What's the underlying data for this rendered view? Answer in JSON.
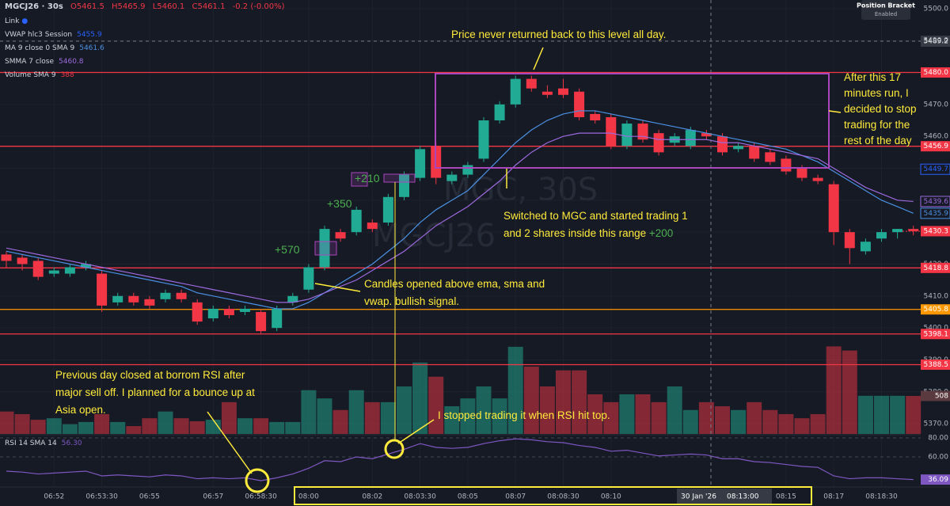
{
  "header": {
    "symbol": "MGCJ26 · 30s",
    "ohlc": [
      "O5461.5",
      "H5465.9",
      "L5460.1",
      "C5461.1"
    ],
    "change": "-0.2 (-0.00%)",
    "link": "Link"
  },
  "legend": [
    {
      "name": "VWAP hlc3 Session",
      "value": 5455.9,
      "color": "#2962ff"
    },
    {
      "name": "MA 9 close 0 SMA 9",
      "value": 5461.6,
      "color": "#4a90e2"
    },
    {
      "name": "SMMA 7 close",
      "value": 5460.8,
      "color": "#9c6ade"
    },
    {
      "name": "Volume SMA 9",
      "value": 388,
      "color": "#f23645"
    }
  ],
  "position_bracket": {
    "title": "Position Bracket",
    "state": "Enabled"
  },
  "crosshair": {
    "date": "30 Jan '26",
    "time": "08:13:00",
    "price": 5489.2
  },
  "watermark": [
    "MGC, 30S",
    "MGCJ26"
  ],
  "annotations": {
    "never_returned": "Price never returned back to this level all day.",
    "stop": "After this 17 minutes run, I decided to stop trading for the rest of the day",
    "range": "Switched to MGC and started trading 1 and 2 shares inside this range",
    "range_pnl": "+200",
    "pnl": [
      "+570",
      "+350",
      "+210"
    ],
    "candles": "Candles opened above ema, sma and vwap. bullish signal.",
    "previous": "Previous day closed at borrom RSI after major sell off. I planned for a bounce up at Asia open.",
    "rsi_top": "I stopped trading it when RSI hit top."
  },
  "chart_data": {
    "type": "candlestick",
    "up_color": "#22ab94",
    "down_color": "#f23645",
    "grid": true,
    "categories": [
      null,
      null,
      null,
      "06:52",
      null,
      null,
      "06:53:30",
      null,
      null,
      "06:55",
      null,
      null,
      null,
      "06:57",
      null,
      null,
      "06:58:30",
      null,
      null,
      "08:00",
      null,
      null,
      null,
      "08:02",
      null,
      null,
      "08:03:30",
      null,
      null,
      "08:05",
      null,
      null,
      "08:07",
      null,
      null,
      "08:08:30",
      null,
      null,
      "08:10",
      null,
      null,
      null,
      null,
      null,
      null,
      null,
      null,
      null,
      null,
      "08:15",
      null,
      null,
      "08:17",
      null,
      null,
      "08:18:30",
      null,
      null
    ],
    "open": [
      5423,
      5422,
      5421,
      5417,
      5417,
      5419,
      5417,
      5408,
      5410,
      5409,
      5409,
      5411,
      5408,
      5403,
      5406,
      5405,
      5405,
      5400,
      5408,
      5412,
      5419,
      5430,
      5430,
      5433,
      5433,
      5441,
      5447,
      5457,
      5446,
      5448,
      5453,
      5465,
      5470,
      5478,
      5474,
      5475,
      5474,
      5467,
      5466,
      5457,
      5464,
      5461,
      5458,
      5457,
      5461,
      5460,
      5456,
      5457,
      5455,
      5453,
      5450,
      5447,
      5445,
      5430,
      5424,
      5428,
      5430,
      5431
    ],
    "high": [
      5424,
      5423,
      5422,
      5419,
      5420,
      5421,
      5418,
      5411,
      5411,
      5410,
      5412,
      5412,
      5409,
      5407,
      5407,
      5407,
      5406,
      5407,
      5411,
      5420,
      5432,
      5431,
      5438,
      5434,
      5442,
      5449,
      5457,
      5458,
      5449,
      5452,
      5466,
      5471,
      5479,
      5479,
      5476,
      5478,
      5475,
      5468,
      5467,
      5465,
      5465,
      5462,
      5461,
      5463,
      5462,
      5461,
      5458,
      5458,
      5456,
      5454,
      5451,
      5448,
      5446,
      5431,
      5428,
      5431,
      5431,
      5432
    ],
    "low": [
      5419,
      5418,
      5415,
      5416,
      5416,
      5418,
      5405,
      5407,
      5407,
      5406,
      5408,
      5408,
      5401,
      5402,
      5403,
      5404,
      5398,
      5399,
      5407,
      5411,
      5418,
      5427,
      5429,
      5430,
      5432,
      5440,
      5446,
      5445,
      5445,
      5447,
      5452,
      5464,
      5469,
      5474,
      5472,
      5472,
      5465,
      5464,
      5456,
      5456,
      5458,
      5454,
      5457,
      5456,
      5459,
      5454,
      5455,
      5452,
      5451,
      5448,
      5446,
      5445,
      5426,
      5420,
      5423,
      5427,
      5428,
      5429
    ],
    "close": [
      5421,
      5420,
      5416,
      5418,
      5419,
      5420,
      5407,
      5410,
      5408,
      5407,
      5411,
      5409,
      5402,
      5406,
      5404,
      5406,
      5399,
      5406,
      5410,
      5419,
      5431,
      5428,
      5437,
      5431,
      5441,
      5448,
      5456,
      5447,
      5448,
      5451,
      5465,
      5470,
      5478,
      5475,
      5473,
      5473,
      5466,
      5465,
      5457,
      5464,
      5459,
      5455,
      5460,
      5462,
      5460,
      5455,
      5457,
      5453,
      5452,
      5449,
      5447,
      5446,
      5430,
      5425,
      5427,
      5430,
      5431,
      5430.3
    ],
    "ylim": [
      5366.8,
      5502.7
    ],
    "yticks": [
      {
        "value": 5370,
        "label": "5370.0"
      },
      {
        "value": 5380,
        "label": "5380.0"
      },
      {
        "value": 5390,
        "label": "5390.0"
      },
      {
        "value": 5400,
        "label": "5400.0"
      },
      {
        "value": 5410,
        "label": "5410.0"
      },
      {
        "value": 5420,
        "label": "5420.0"
      },
      {
        "value": 5430,
        "label": "5430.0"
      },
      {
        "value": 5440,
        "label": "5440.0"
      },
      {
        "value": 5450,
        "label": "5450.0"
      },
      {
        "value": 5460,
        "label": "5460.0"
      },
      {
        "value": 5470,
        "label": "5470.0"
      },
      {
        "value": 5480,
        "label": "5480.0"
      },
      {
        "value": 5490,
        "label": "5490.0"
      },
      {
        "value": 5500,
        "label": "5500.0"
      }
    ],
    "price_lines": [
      {
        "value": 5480,
        "label": "5480.0",
        "color": "#f23645"
      },
      {
        "value": 5456.9,
        "color": "#f23645"
      },
      {
        "value": 5418.8,
        "color": "#f23645"
      },
      {
        "value": 5405.8,
        "color": "#ff9800"
      },
      {
        "value": 5398.1,
        "color": "#f23645"
      },
      {
        "value": 5388.5,
        "color": "#f23645"
      }
    ],
    "badges": [
      {
        "value": 5449.7,
        "color": "#2962ff"
      }
    ],
    "overlays": [
      {
        "name": "MA 9",
        "color": "#4a90e2",
        "values": [
          5424,
          5423,
          5422,
          5421,
          5420,
          5419,
          5418,
          5417,
          5416,
          5415,
          5414,
          5413,
          5411,
          5410,
          5409,
          5408,
          5407,
          5406,
          5406,
          5408,
          5411,
          5414,
          5417,
          5420,
          5424,
          5428,
          5433,
          5437,
          5440,
          5443,
          5448,
          5453,
          5458,
          5462,
          5465,
          5467,
          5468,
          5468,
          5467,
          5466,
          5465,
          5464,
          5463,
          5462,
          5461,
          5460,
          5459,
          5458,
          5457,
          5456,
          5454,
          5452,
          5449,
          5446,
          5443,
          5440,
          5438,
          5435.9
        ]
      },
      {
        "name": "SMMA 7",
        "color": "#9c6ade",
        "values": [
          5425,
          5424,
          5423,
          5422,
          5421,
          5420,
          5419,
          5418,
          5417,
          5416,
          5415,
          5414,
          5413,
          5412,
          5411,
          5410,
          5409,
          5408,
          5408,
          5409,
          5411,
          5413,
          5415,
          5418,
          5421,
          5424,
          5428,
          5432,
          5435,
          5438,
          5442,
          5446,
          5451,
          5455,
          5458,
          5460,
          5461,
          5461,
          5461,
          5460,
          5460,
          5459,
          5459,
          5459,
          5459,
          5458,
          5458,
          5457,
          5456,
          5455,
          5454,
          5453,
          5450,
          5447,
          5444,
          5442,
          5440,
          5439.6
        ]
      }
    ],
    "volume": {
      "ylim": [
        0,
        5800
      ],
      "values": [
        300,
        265,
        190,
        210,
        130,
        160,
        265,
        160,
        105,
        210,
        300,
        210,
        170,
        190,
        425,
        210,
        210,
        160,
        160,
        585,
        475,
        320,
        585,
        425,
        425,
        635,
        955,
        765,
        370,
        475,
        635,
        475,
        1165,
        900,
        635,
        850,
        850,
        530,
        425,
        530,
        530,
        425,
        635,
        320,
        425,
        370,
        320,
        425,
        320,
        265,
        210,
        265,
        1170,
        1115,
        510,
        510,
        510,
        508
      ]
    },
    "rsi": {
      "label": "RSI 14 SMA 14",
      "current": {
        "value": 56.3,
        "label": "56.30"
      },
      "color": "#7e57c2",
      "ylim": [
        28.3,
        82.5
      ],
      "yticks": [
        {
          "value": 60,
          "label": "60.00"
        },
        {
          "value": 80,
          "label": "80.00"
        }
      ],
      "values": [
        45,
        44,
        42,
        43,
        44,
        45,
        40,
        41,
        40,
        39,
        41,
        40,
        37,
        38,
        37,
        38,
        35,
        38,
        42,
        48,
        56,
        55,
        60,
        58,
        63,
        68,
        74,
        70,
        69,
        70,
        74,
        77,
        79,
        78,
        76,
        75,
        72,
        70,
        66,
        67,
        64,
        61,
        62,
        63,
        62,
        58,
        58,
        55,
        54,
        52,
        50,
        49,
        40,
        37,
        38,
        38,
        37,
        36.09
      ]
    }
  }
}
